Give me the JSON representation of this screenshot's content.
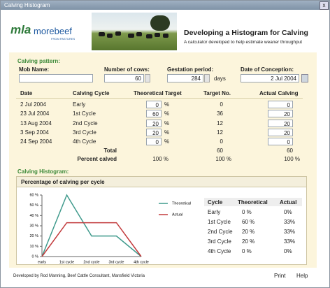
{
  "window": {
    "title": "Calving Histogram",
    "close": "x"
  },
  "header": {
    "logo_mla": "mla",
    "logo_brand": "morebeef",
    "logo_tagline": "FROM PASTURES",
    "title": "Developing a Histogram for Calving",
    "subtitle": "A calculator developed to help estimate weaner throughput"
  },
  "form": {
    "heading": "Calving pattern:",
    "mob_name_label": "Mob Name:",
    "cows_label": "Number of cows:",
    "cows": 60,
    "gestation_label": "Gestation period:",
    "gestation": 284,
    "gestation_unit": "days",
    "conception_label": "Date of Conception:",
    "conception": "2 Jul 2004"
  },
  "table": {
    "headers": [
      "Date",
      "Calving Cycle",
      "Theoretical Target",
      "Target No.",
      "Actual Calving"
    ],
    "percent_sign": "%",
    "rows": [
      [
        "2 Jul 2004",
        "Early",
        0,
        0,
        0
      ],
      [
        "23 Jul 2004",
        "1st Cycle",
        60,
        36,
        20
      ],
      [
        "13 Aug 2004",
        "2nd Cycle",
        20,
        12,
        20
      ],
      [
        "3 Sep 2004",
        "3rd Cycle",
        20,
        12,
        20
      ],
      [
        "24 Sep 2004",
        "4th Cycle",
        0,
        0,
        0
      ]
    ],
    "total_label": "Total",
    "total": [
      60,
      60
    ],
    "percent_label": "Percent calved",
    "percent": [
      "100 %",
      "100 %",
      "100 %"
    ]
  },
  "histogram_heading": "Calving Histogram:",
  "chart_data": {
    "type": "line",
    "title": "Percentage of calving per cycle",
    "categories": [
      "early",
      "1st cycle",
      "2nd cycle",
      "3rd cycle",
      "4th cycle"
    ],
    "series": [
      {
        "name": "Theoretical",
        "color": "#3f9a8c",
        "values": [
          0,
          60,
          20,
          20,
          0
        ]
      },
      {
        "name": "Actual",
        "color": "#c23a3c",
        "values": [
          0,
          33,
          33,
          33,
          0
        ]
      }
    ],
    "ylim": [
      0,
      60
    ],
    "yticks": [
      {
        "value": 0,
        "label": "0 %"
      },
      {
        "value": 10,
        "label": "10 %"
      },
      {
        "value": 20,
        "label": "20 %"
      },
      {
        "value": 30,
        "label": "30 %"
      },
      {
        "value": 40,
        "label": "40 %"
      },
      {
        "value": 50,
        "label": "50 %"
      },
      {
        "value": 60,
        "label": "60 %"
      }
    ],
    "legend": "right"
  },
  "summary": {
    "headers": [
      "Cycle",
      "Theoretical",
      "Actual"
    ],
    "rows": [
      [
        "Early",
        "0 %",
        "0%"
      ],
      [
        "1st Cycle",
        "60 %",
        "33%"
      ],
      [
        "2nd Cycle",
        "20 %",
        "33%"
      ],
      [
        "3rd Cycle",
        "20 %",
        "33%"
      ],
      [
        "4th Cycle",
        "0 %",
        "0%"
      ]
    ]
  },
  "footer": {
    "credit": "Developed by Rod Manning, Beef Cattle Consultant, Mansfield Victoria",
    "buttons": [
      "Print",
      "Help"
    ]
  }
}
